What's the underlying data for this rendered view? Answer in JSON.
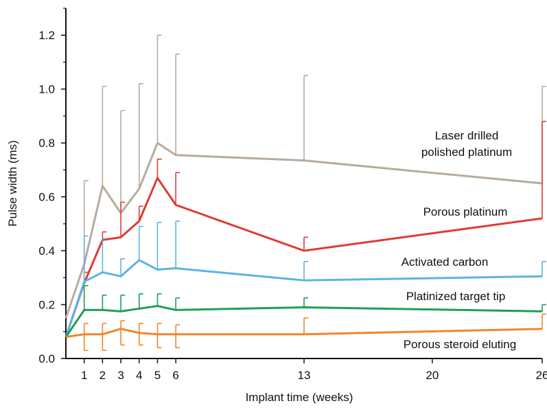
{
  "chart_data": {
    "type": "line",
    "title": "",
    "xlabel": "Implant time (weeks)",
    "ylabel": "Pulse width (ms)",
    "xlim": [
      0,
      26
    ],
    "ylim": [
      0,
      1.3
    ],
    "x_ticks": [
      1,
      2,
      3,
      4,
      5,
      6,
      13,
      20,
      26
    ],
    "y_ticks": [
      0.0,
      0.2,
      0.4,
      0.6,
      0.8,
      1.0,
      1.2
    ],
    "y_tick_labels": [
      "0.0",
      "0.2",
      "0.4",
      "0.6",
      "0.8",
      "1.0",
      "1.2"
    ],
    "grid": false,
    "legend": "none (series labeled inline)",
    "series": [
      {
        "name": "Laser drilled polished platinum",
        "label_lines": [
          "Laser drilled",
          "polished platinum"
        ],
        "color": "#b7ab9c",
        "x": [
          0,
          1,
          2,
          3,
          4,
          5,
          6,
          13,
          26
        ],
        "y": [
          0.15,
          0.35,
          0.64,
          0.54,
          0.63,
          0.8,
          0.755,
          0.735,
          0.65
        ],
        "error_upper": [
          null,
          0.66,
          1.01,
          0.92,
          1.02,
          1.2,
          1.13,
          1.05,
          1.01
        ],
        "error_lower": [
          null,
          null,
          null,
          null,
          null,
          null,
          null,
          null,
          null
        ]
      },
      {
        "name": "Porous platinum",
        "label_lines": [
          "Porous platinum"
        ],
        "color": "#e03a32",
        "x": [
          0,
          1,
          2,
          3,
          4,
          5,
          6,
          13,
          26
        ],
        "y": [
          0.08,
          0.28,
          0.44,
          0.45,
          0.51,
          0.67,
          0.57,
          0.4,
          0.52
        ],
        "error_upper": [
          null,
          0.32,
          0.47,
          0.58,
          0.565,
          0.74,
          0.69,
          0.45,
          0.88
        ],
        "error_lower": [
          null,
          null,
          null,
          null,
          null,
          null,
          null,
          null,
          null
        ]
      },
      {
        "name": "Activated carbon",
        "label_lines": [
          "Activated carbon"
        ],
        "color": "#5ab4e6",
        "x": [
          0,
          1,
          2,
          3,
          4,
          5,
          6,
          13,
          26
        ],
        "y": [
          0.08,
          0.285,
          0.32,
          0.305,
          0.365,
          0.33,
          0.335,
          0.29,
          0.305
        ],
        "error_upper": [
          null,
          0.455,
          0.445,
          0.37,
          0.49,
          0.505,
          0.51,
          0.36,
          0.36
        ],
        "error_lower": [
          null,
          null,
          null,
          null,
          null,
          null,
          null,
          null,
          null
        ]
      },
      {
        "name": "Platinized target tip",
        "label_lines": [
          "Platinized target tip"
        ],
        "color": "#1f9e55",
        "x": [
          0,
          1,
          2,
          3,
          4,
          5,
          6,
          13,
          26
        ],
        "y": [
          0.08,
          0.18,
          0.18,
          0.175,
          0.185,
          0.195,
          0.18,
          0.19,
          0.175
        ],
        "error_upper": [
          null,
          0.27,
          0.235,
          0.235,
          0.24,
          0.24,
          0.225,
          0.225,
          0.2
        ],
        "error_lower": [
          null,
          null,
          null,
          null,
          null,
          null,
          null,
          null,
          null
        ]
      },
      {
        "name": "Porous steroid eluting",
        "label_lines": [
          "Porous steroid eluting"
        ],
        "color": "#f0862a",
        "x": [
          0,
          1,
          2,
          3,
          4,
          5,
          6,
          13,
          26
        ],
        "y": [
          0.08,
          0.09,
          0.09,
          0.11,
          0.095,
          0.09,
          0.09,
          0.09,
          0.11
        ],
        "error_upper": [
          null,
          0.13,
          0.13,
          0.14,
          0.13,
          0.13,
          0.125,
          0.15,
          0.165
        ],
        "error_lower": [
          null,
          0.03,
          0.03,
          0.05,
          0.05,
          0.04,
          0.04,
          null,
          null
        ]
      }
    ]
  }
}
